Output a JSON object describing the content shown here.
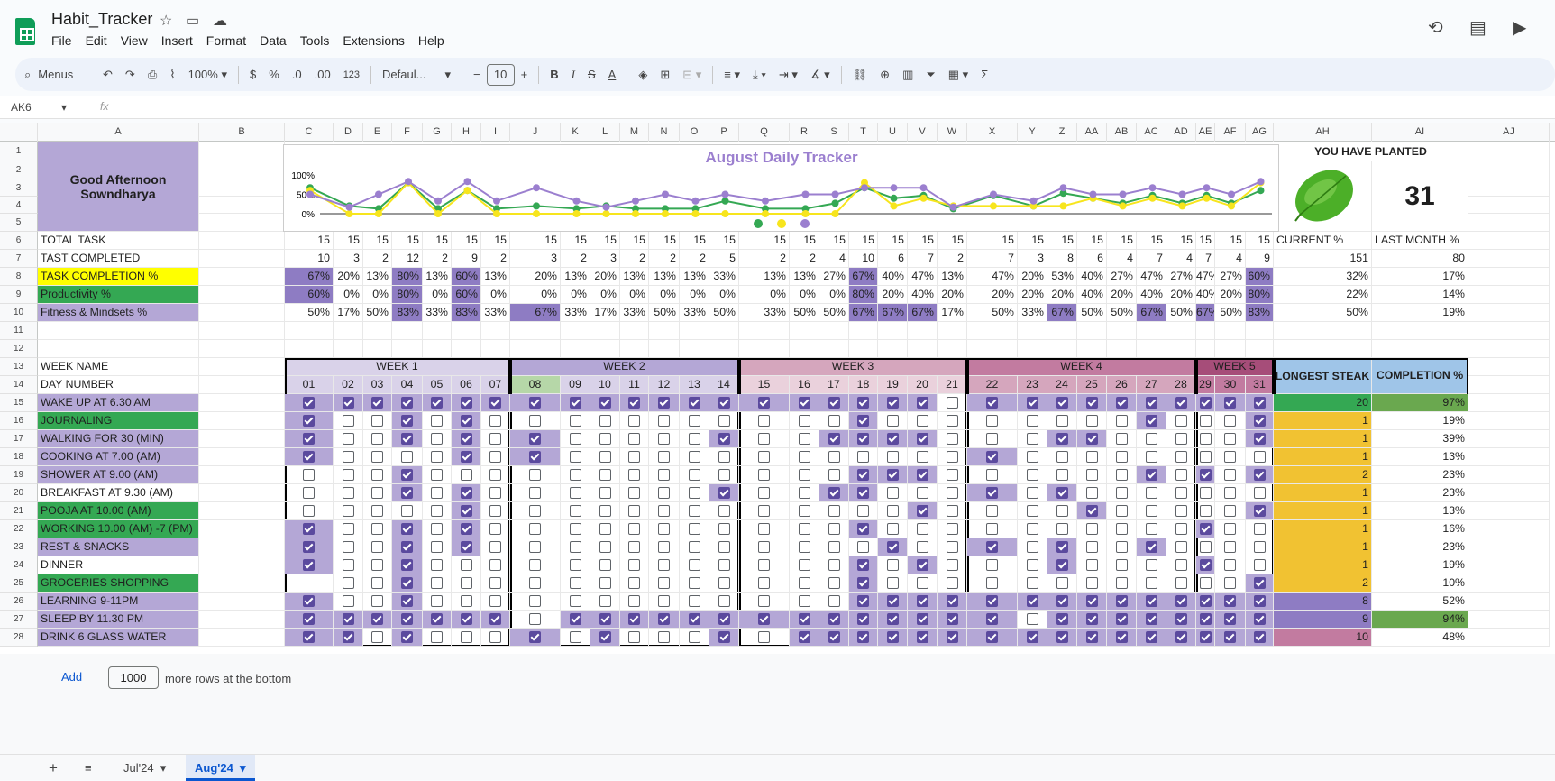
{
  "app": {
    "title": "Habit_Tracker",
    "menus": [
      "File",
      "Edit",
      "View",
      "Insert",
      "Format",
      "Data",
      "Tools",
      "Extensions",
      "Help"
    ]
  },
  "toolbar": {
    "search": "Menus",
    "zoom": "100%",
    "currency": "$",
    "percent": "%",
    "dec_less": ".0",
    "dec_more": ".00",
    "number_fmt": "123",
    "font": "Defaul...",
    "font_size": "10"
  },
  "formula": {
    "cell": "AK6",
    "fx": "fx"
  },
  "columns": [
    "A",
    "B",
    "C",
    "D",
    "E",
    "F",
    "G",
    "H",
    "I",
    "J",
    "K",
    "L",
    "M",
    "N",
    "O",
    "P",
    "Q",
    "R",
    "S",
    "T",
    "U",
    "V",
    "W",
    "X",
    "Y",
    "Z",
    "AA",
    "AB",
    "AC",
    "AD",
    "AE",
    "AF",
    "AG",
    "AH",
    "AI",
    "AJ"
  ],
  "rows": [
    "1",
    "2",
    "3",
    "4",
    "5",
    "6",
    "7",
    "8",
    "9",
    "10",
    "11",
    "12",
    "13",
    "14",
    "15",
    "16",
    "17",
    "18",
    "19",
    "20",
    "21",
    "22",
    "23",
    "24",
    "25",
    "26",
    "27",
    "28"
  ],
  "greeting": "Good Afternoon Sowndharya",
  "chart_data": {
    "type": "line",
    "title": "August Daily Tracker",
    "x": [
      "01",
      "02",
      "03",
      "04",
      "05",
      "06",
      "07",
      "08",
      "09",
      "10",
      "11",
      "12",
      "13",
      "14",
      "15",
      "16",
      "17",
      "18",
      "19",
      "20",
      "21",
      "22",
      "23",
      "24",
      "25",
      "26",
      "27",
      "28",
      "29",
      "30",
      "31"
    ],
    "ylim": [
      0,
      100
    ],
    "yticks": [
      "100%",
      "50%",
      "0%"
    ],
    "series": [
      {
        "color": "#34a853",
        "values": [
          67,
          20,
          13,
          80,
          13,
          60,
          13,
          20,
          13,
          20,
          13,
          13,
          13,
          33,
          13,
          13,
          27,
          67,
          40,
          47,
          13,
          47,
          20,
          53,
          40,
          27,
          47,
          27,
          47,
          27,
          60
        ]
      },
      {
        "color": "#f7e51d",
        "values": [
          60,
          0,
          0,
          80,
          0,
          60,
          0,
          0,
          0,
          0,
          0,
          0,
          0,
          0,
          0,
          0,
          0,
          80,
          20,
          40,
          20,
          20,
          20,
          20,
          40,
          20,
          40,
          20,
          40,
          20,
          80
        ]
      },
      {
        "color": "#9b7fcf",
        "values": [
          50,
          17,
          50,
          83,
          33,
          83,
          33,
          67,
          33,
          17,
          33,
          50,
          33,
          50,
          33,
          50,
          50,
          67,
          67,
          67,
          17,
          50,
          33,
          67,
          50,
          50,
          67,
          50,
          67,
          50,
          83
        ]
      }
    ]
  },
  "planted": {
    "title": "YOU HAVE PLANTED",
    "count": "31"
  },
  "summary_rows": [
    {
      "label": "TOTAL TASK",
      "cls": "plain",
      "vals": [
        "15",
        "15",
        "15",
        "15",
        "15",
        "15",
        "15",
        "15",
        "15",
        "15",
        "15",
        "15",
        "15",
        "15",
        "15",
        "15",
        "15",
        "15",
        "15",
        "15",
        "15",
        "15",
        "15",
        "15",
        "15",
        "15",
        "15",
        "15",
        "15",
        "15",
        "15"
      ],
      "ah": "CURRENT %",
      "ai": "LAST MONTH %",
      "pct": false
    },
    {
      "label": "TAST COMPLETED",
      "cls": "plain",
      "vals": [
        "10",
        "3",
        "2",
        "12",
        "2",
        "9",
        "2",
        "3",
        "2",
        "3",
        "2",
        "2",
        "2",
        "5",
        "2",
        "2",
        "4",
        "10",
        "6",
        "7",
        "2",
        "7",
        "3",
        "8",
        "6",
        "4",
        "7",
        "4",
        "7",
        "4",
        "9"
      ],
      "ah": "151",
      "ai": "80",
      "pct": false
    },
    {
      "label": "TASK COMPLETION %",
      "cls": "yellow",
      "vals": [
        "67%",
        "20%",
        "13%",
        "80%",
        "13%",
        "60%",
        "13%",
        "20%",
        "13%",
        "20%",
        "13%",
        "13%",
        "13%",
        "33%",
        "13%",
        "13%",
        "27%",
        "67%",
        "40%",
        "47%",
        "13%",
        "47%",
        "20%",
        "53%",
        "40%",
        "27%",
        "47%",
        "27%",
        "47%",
        "27%",
        "60%"
      ],
      "ah": "32%",
      "ai": "17%",
      "pct": true
    },
    {
      "label": "Productivity %",
      "cls": "green",
      "vals": [
        "60%",
        "0%",
        "0%",
        "80%",
        "0%",
        "60%",
        "0%",
        "0%",
        "0%",
        "0%",
        "0%",
        "0%",
        "0%",
        "0%",
        "0%",
        "0%",
        "0%",
        "80%",
        "20%",
        "40%",
        "20%",
        "20%",
        "20%",
        "20%",
        "40%",
        "20%",
        "40%",
        "20%",
        "40%",
        "20%",
        "80%"
      ],
      "ah": "22%",
      "ai": "14%",
      "pct": true
    },
    {
      "label": "Fitness & Mindsets %",
      "cls": "lav",
      "vals": [
        "50%",
        "17%",
        "50%",
        "83%",
        "33%",
        "83%",
        "33%",
        "67%",
        "33%",
        "17%",
        "33%",
        "50%",
        "33%",
        "50%",
        "33%",
        "50%",
        "50%",
        "67%",
        "67%",
        "67%",
        "17%",
        "50%",
        "33%",
        "67%",
        "50%",
        "50%",
        "67%",
        "50%",
        "67%",
        "50%",
        "83%"
      ],
      "ah": "50%",
      "ai": "19%",
      "pct": true
    }
  ],
  "week_name_label": "WEEK NAME",
  "day_number_label": "DAY NUMBER",
  "weeks": [
    "WEEK 1",
    "WEEK 2",
    "WEEK 3",
    "WEEK 4",
    "WEEK 5"
  ],
  "days": [
    "01",
    "02",
    "03",
    "04",
    "05",
    "06",
    "07",
    "08",
    "09",
    "10",
    "11",
    "12",
    "13",
    "14",
    "15",
    "16",
    "17",
    "18",
    "19",
    "20",
    "21",
    "22",
    "23",
    "24",
    "25",
    "26",
    "27",
    "28",
    "29",
    "30",
    "31"
  ],
  "longest_label": "LONGEST STEAK",
  "completion_label": "COMPLETION %",
  "habits": [
    {
      "name": "WAKE UP AT 6.30 AM",
      "cls": "lav",
      "checks": "1111111111111111111101111111111",
      "streak": "20",
      "pct": "97%"
    },
    {
      "name": "JOURNALING",
      "cls": "green",
      "checks": "1001010000000000010000000010001",
      "streak": "1",
      "pct": "19%"
    },
    {
      "name": "WALKING FOR 30 (MIN)",
      "cls": "lav",
      "checks": "1001010100000100111100011000001",
      "streak": "1",
      "pct": "39%"
    },
    {
      "name": "COOKING AT 7.00 (AM)",
      "cls": "lav",
      "checks": "1000010100000000000001000000000",
      "streak": "1",
      "pct": "13%"
    },
    {
      "name": "SHOWER AT 9.00 (AM)",
      "cls": "lav",
      "checks": "0001000000000000011100000010101",
      "streak": "2",
      "pct": "23%"
    },
    {
      "name": "BREAKFAST AT 9.30 (AM)",
      "cls": "plain",
      "checks": "0001010000000100110001010000000",
      "streak": "1",
      "pct": "23%"
    },
    {
      "name": "POOJA AT 10.00 (AM)",
      "cls": "green",
      "checks": "0000010000000000000100001000001",
      "streak": "1",
      "pct": "13%"
    },
    {
      "name": "WORKING 10.00 (AM) -7 (PM)",
      "cls": "green",
      "checks": "1001010000000000010000000000100",
      "streak": "1",
      "pct": "16%"
    },
    {
      "name": "REST & SNACKS",
      "cls": "lav",
      "checks": "1001010000000000001001010010000",
      "streak": "1",
      "pct": "23%"
    },
    {
      "name": "DINNER",
      "cls": "plain",
      "checks": "1001000000000000010100010000100",
      "streak": "1",
      "pct": "19%"
    },
    {
      "name": "GROCERIES SHOPPING",
      "cls": "green",
      "checks": "-001000000000000010000000000001",
      "streak": "2",
      "pct": "10%"
    },
    {
      "name": "LEARNING 9-11PM",
      "cls": "lav",
      "checks": "1001000000000000011111111111111",
      "streak": "8",
      "pct": "52%"
    },
    {
      "name": "SLEEP BY 11.30 PM",
      "cls": "lav",
      "checks": "1111111011111111111111011111111",
      "streak": "9",
      "pct": "94%"
    },
    {
      "name": "DRINK 6 GLASS WATER",
      "cls": "lav",
      "checks": "1101000101000101111111111111111",
      "streak": "10",
      "pct": "48%"
    }
  ],
  "bottom": {
    "add": "Add",
    "rows": "1000",
    "more": "more rows at the bottom"
  },
  "sheets": [
    "Jul'24",
    "Aug'24"
  ],
  "colors": {
    "lavender": "#b4a7d6",
    "green": "#34a853",
    "yellow": "#ffff00",
    "purple": "#8e7cc3",
    "orange": "#f1c232",
    "pink": "#c27ba0"
  }
}
